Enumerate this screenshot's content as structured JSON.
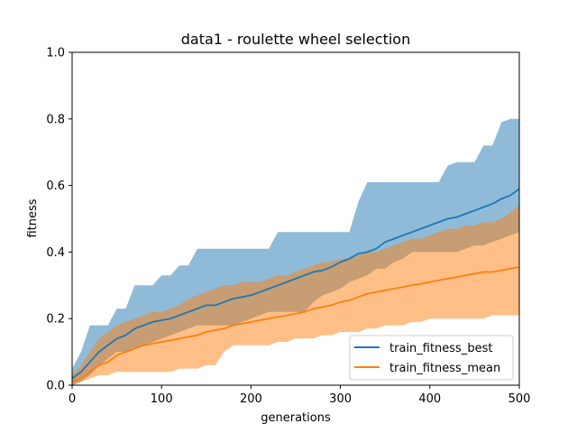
{
  "chart_data": {
    "type": "line",
    "title": "data1 - roulette wheel selection",
    "xlabel": "generations",
    "ylabel": "fitness",
    "xlim": [
      0,
      500
    ],
    "ylim": [
      0.0,
      1.0
    ],
    "xticks": [
      "0",
      "100",
      "200",
      "300",
      "400",
      "500"
    ],
    "yticks": [
      "0.0",
      "0.2",
      "0.4",
      "0.6",
      "0.8",
      "1.0"
    ],
    "grid": false,
    "legend_position": "lower-right",
    "series": [
      {
        "name": "train_fitness_best",
        "color": "#1f77b4",
        "band_color": "#1f77b4",
        "x": [
          0,
          10,
          20,
          30,
          40,
          50,
          60,
          70,
          80,
          90,
          100,
          110,
          120,
          130,
          140,
          150,
          160,
          170,
          180,
          190,
          200,
          210,
          220,
          230,
          240,
          250,
          260,
          270,
          280,
          290,
          300,
          310,
          320,
          330,
          340,
          350,
          360,
          370,
          380,
          390,
          400,
          410,
          420,
          430,
          440,
          450,
          460,
          470,
          480,
          490,
          500
        ],
        "mean": [
          0.02,
          0.04,
          0.07,
          0.1,
          0.12,
          0.14,
          0.15,
          0.17,
          0.18,
          0.19,
          0.195,
          0.2,
          0.21,
          0.22,
          0.23,
          0.24,
          0.24,
          0.25,
          0.26,
          0.265,
          0.27,
          0.28,
          0.29,
          0.3,
          0.31,
          0.32,
          0.33,
          0.34,
          0.345,
          0.355,
          0.37,
          0.38,
          0.395,
          0.4,
          0.41,
          0.43,
          0.44,
          0.45,
          0.46,
          0.47,
          0.48,
          0.49,
          0.5,
          0.505,
          0.515,
          0.525,
          0.535,
          0.545,
          0.56,
          0.57,
          0.59
        ],
        "lower": [
          0.0,
          0.01,
          0.03,
          0.06,
          0.08,
          0.1,
          0.1,
          0.11,
          0.12,
          0.13,
          0.14,
          0.15,
          0.16,
          0.17,
          0.18,
          0.18,
          0.18,
          0.18,
          0.18,
          0.19,
          0.2,
          0.21,
          0.22,
          0.22,
          0.22,
          0.22,
          0.22,
          0.25,
          0.27,
          0.28,
          0.29,
          0.31,
          0.32,
          0.33,
          0.35,
          0.35,
          0.37,
          0.38,
          0.4,
          0.4,
          0.4,
          0.4,
          0.4,
          0.4,
          0.41,
          0.42,
          0.42,
          0.43,
          0.44,
          0.45,
          0.46
        ],
        "upper": [
          0.05,
          0.1,
          0.18,
          0.18,
          0.18,
          0.23,
          0.23,
          0.3,
          0.3,
          0.3,
          0.33,
          0.33,
          0.36,
          0.36,
          0.41,
          0.41,
          0.41,
          0.41,
          0.41,
          0.41,
          0.41,
          0.41,
          0.41,
          0.46,
          0.46,
          0.46,
          0.46,
          0.46,
          0.46,
          0.46,
          0.46,
          0.46,
          0.55,
          0.61,
          0.61,
          0.61,
          0.61,
          0.61,
          0.61,
          0.61,
          0.61,
          0.61,
          0.66,
          0.67,
          0.67,
          0.67,
          0.72,
          0.72,
          0.79,
          0.8,
          0.8
        ]
      },
      {
        "name": "train_fitness_mean",
        "color": "#ff7f0e",
        "band_color": "#ff7f0e",
        "x": [
          0,
          10,
          20,
          30,
          40,
          50,
          60,
          70,
          80,
          90,
          100,
          110,
          120,
          130,
          140,
          150,
          160,
          170,
          180,
          190,
          200,
          210,
          220,
          230,
          240,
          250,
          260,
          270,
          280,
          290,
          300,
          310,
          320,
          330,
          340,
          350,
          360,
          370,
          380,
          390,
          400,
          410,
          420,
          430,
          440,
          450,
          460,
          470,
          480,
          490,
          500
        ],
        "mean": [
          0.01,
          0.02,
          0.04,
          0.06,
          0.07,
          0.09,
          0.1,
          0.11,
          0.12,
          0.125,
          0.13,
          0.135,
          0.14,
          0.145,
          0.15,
          0.16,
          0.165,
          0.17,
          0.18,
          0.185,
          0.19,
          0.195,
          0.2,
          0.205,
          0.21,
          0.215,
          0.22,
          0.23,
          0.235,
          0.24,
          0.25,
          0.255,
          0.265,
          0.275,
          0.28,
          0.285,
          0.29,
          0.295,
          0.3,
          0.305,
          0.31,
          0.315,
          0.32,
          0.325,
          0.33,
          0.335,
          0.34,
          0.34,
          0.345,
          0.35,
          0.355
        ],
        "lower": [
          0.0,
          0.01,
          0.02,
          0.03,
          0.03,
          0.04,
          0.04,
          0.04,
          0.04,
          0.04,
          0.04,
          0.04,
          0.05,
          0.05,
          0.05,
          0.06,
          0.06,
          0.1,
          0.12,
          0.12,
          0.12,
          0.12,
          0.12,
          0.13,
          0.13,
          0.14,
          0.14,
          0.14,
          0.15,
          0.15,
          0.16,
          0.16,
          0.16,
          0.17,
          0.17,
          0.18,
          0.18,
          0.18,
          0.19,
          0.19,
          0.2,
          0.2,
          0.2,
          0.2,
          0.2,
          0.2,
          0.2,
          0.21,
          0.21,
          0.21,
          0.21
        ],
        "upper": [
          0.03,
          0.06,
          0.1,
          0.14,
          0.16,
          0.18,
          0.19,
          0.2,
          0.21,
          0.22,
          0.22,
          0.23,
          0.24,
          0.26,
          0.27,
          0.28,
          0.29,
          0.3,
          0.3,
          0.31,
          0.31,
          0.31,
          0.32,
          0.33,
          0.33,
          0.34,
          0.35,
          0.36,
          0.37,
          0.37,
          0.38,
          0.38,
          0.39,
          0.4,
          0.4,
          0.41,
          0.42,
          0.43,
          0.44,
          0.44,
          0.45,
          0.46,
          0.47,
          0.47,
          0.48,
          0.48,
          0.49,
          0.49,
          0.5,
          0.52,
          0.54
        ]
      }
    ]
  }
}
